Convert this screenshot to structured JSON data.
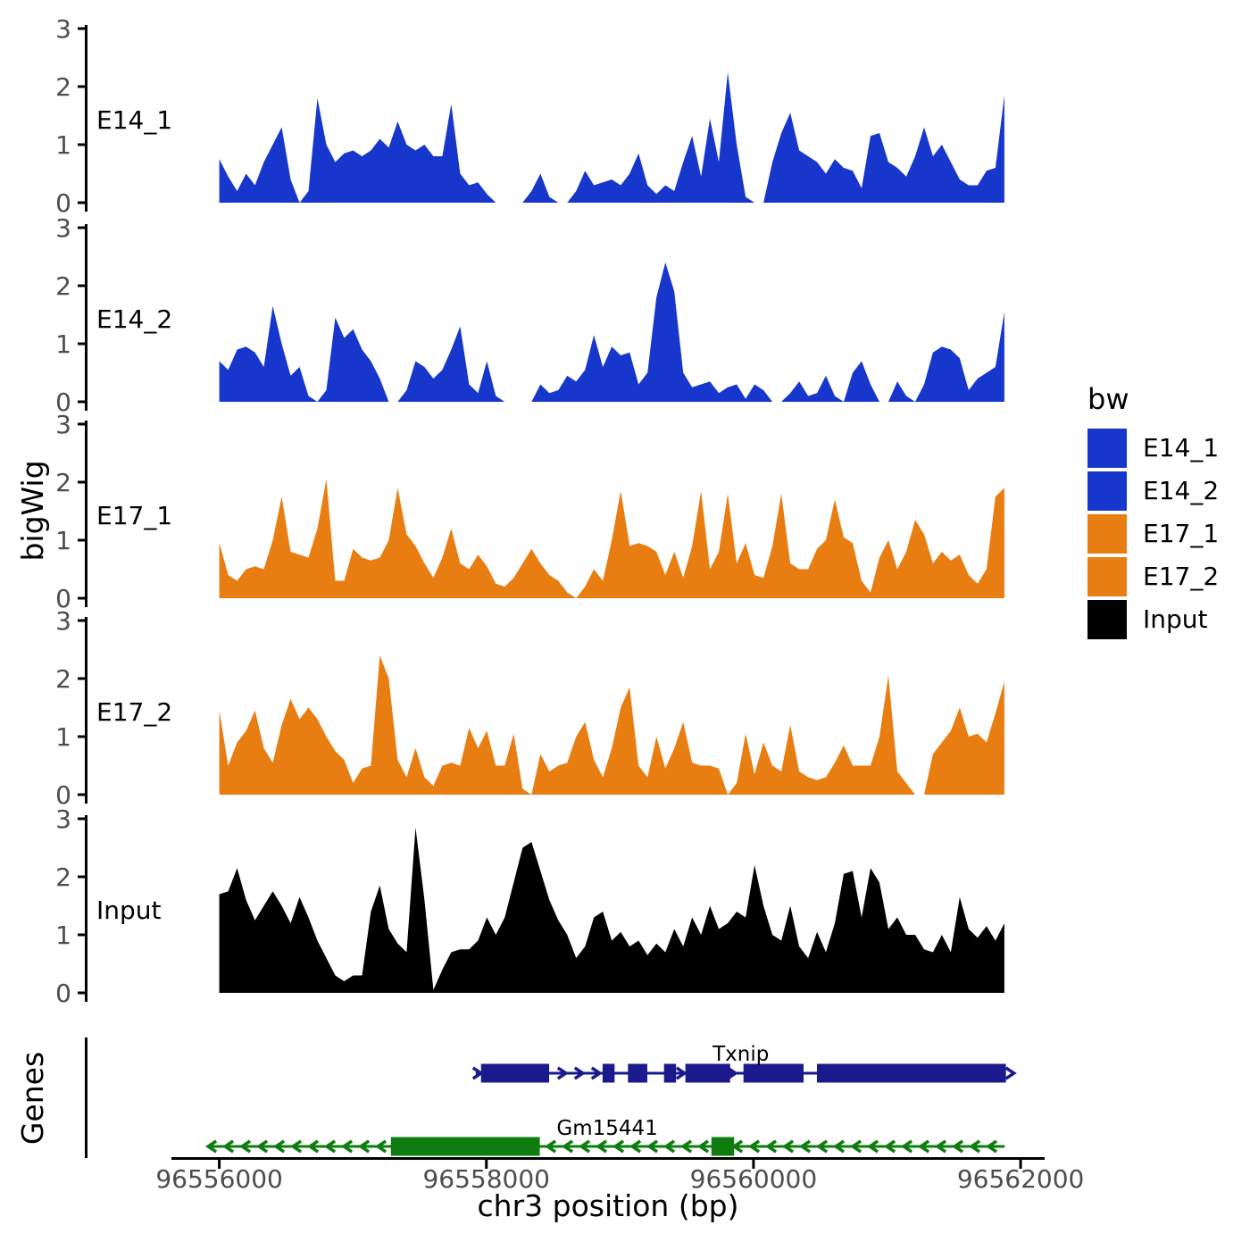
{
  "figure": {
    "x_axis_title": "chr3 position (bp)",
    "y_axis_title": "bigWig",
    "genes_axis_title": "Genes",
    "legend_title": "bw"
  },
  "colors": {
    "blue": "#1736cc",
    "orange": "#e87d12",
    "black": "#000000",
    "txnip_navy": "#1a1a8c",
    "gm_green": "#0e7c0e",
    "axis_line": "#000000",
    "tick_text": "#4d4d4d",
    "background": "#ffffff"
  },
  "chart_data": {
    "type": "area",
    "title": "",
    "xlabel": "chr3 position (bp)",
    "ylabel": "bigWig",
    "x_axis": {
      "ticks": [
        96556000,
        96558000,
        96560000,
        96562000
      ],
      "tick_labels": [
        "96556000",
        "96558000",
        "96560000",
        "96562000"
      ],
      "domain": [
        96555000,
        96562180
      ]
    },
    "y_axis": {
      "ticks": [
        0,
        1,
        2,
        3
      ],
      "ylim": [
        0,
        3
      ]
    },
    "grid": false,
    "legend_position": "right",
    "bp_start": 96556000,
    "bp_step": 66.8,
    "tracks": [
      {
        "name": "E14_1",
        "color": "#1736cc",
        "values": [
          0.75,
          0.45,
          0.2,
          0.5,
          0.3,
          0.7,
          1.0,
          1.3,
          0.4,
          0,
          0.2,
          1.8,
          1.0,
          0.7,
          0.85,
          0.9,
          0.8,
          0.9,
          1.1,
          0.95,
          1.4,
          1.0,
          0.9,
          1.0,
          0.8,
          0.8,
          1.7,
          0.5,
          0.3,
          0.35,
          0.15,
          0,
          0,
          0,
          0,
          0.2,
          0.5,
          0.1,
          0,
          0,
          0.2,
          0.55,
          0.3,
          0.35,
          0.4,
          0.3,
          0.5,
          0.85,
          0.3,
          0.15,
          0.3,
          0.2,
          0.7,
          1.15,
          0.45,
          1.45,
          0.7,
          2.25,
          1.0,
          0.1,
          0,
          0,
          0.7,
          1.2,
          1.55,
          0.9,
          0.8,
          0.7,
          0.5,
          0.75,
          0.6,
          0.55,
          0.25,
          1.15,
          1.2,
          0.7,
          0.6,
          0.45,
          0.8,
          1.3,
          0.8,
          1.0,
          0.7,
          0.4,
          0.3,
          0.3,
          0.55,
          0.6,
          1.85
        ]
      },
      {
        "name": "E14_2",
        "color": "#1736cc",
        "values": [
          0.7,
          0.55,
          0.9,
          0.95,
          0.85,
          0.6,
          1.65,
          1.0,
          0.45,
          0.6,
          0.1,
          0,
          0.2,
          1.45,
          1.1,
          1.25,
          0.9,
          0.7,
          0.4,
          0,
          0,
          0.2,
          0.7,
          0.6,
          0.4,
          0.55,
          0.9,
          1.3,
          0.3,
          0.15,
          0.7,
          0.1,
          0,
          0,
          0,
          0,
          0.3,
          0.15,
          0.2,
          0.45,
          0.35,
          0.55,
          1.15,
          0.6,
          0.95,
          0.8,
          0.85,
          0.3,
          0.5,
          1.8,
          2.4,
          1.9,
          0.5,
          0.25,
          0.3,
          0.35,
          0.15,
          0.25,
          0.3,
          0.05,
          0.3,
          0.2,
          0,
          0,
          0.15,
          0.35,
          0.1,
          0.15,
          0.45,
          0.1,
          0,
          0.5,
          0.7,
          0.3,
          0,
          0,
          0.35,
          0.1,
          0,
          0.3,
          0.85,
          0.95,
          0.9,
          0.75,
          0.2,
          0.4,
          0.5,
          0.6,
          1.55
        ]
      },
      {
        "name": "E17_1",
        "color": "#e87d12",
        "values": [
          0.95,
          0.4,
          0.3,
          0.5,
          0.55,
          0.5,
          1.0,
          1.75,
          0.8,
          0.75,
          0.7,
          1.2,
          2.05,
          0.3,
          0.3,
          0.85,
          0.7,
          0.65,
          0.7,
          1.0,
          1.9,
          1.1,
          0.9,
          0.6,
          0.35,
          0.7,
          1.2,
          0.6,
          0.5,
          0.75,
          0.55,
          0.25,
          0.2,
          0.35,
          0.6,
          0.85,
          0.6,
          0.4,
          0.3,
          0.1,
          0,
          0.2,
          0.5,
          0.3,
          1.0,
          1.85,
          0.9,
          0.95,
          0.9,
          0.8,
          0.4,
          0.8,
          0.35,
          0.9,
          1.85,
          0.5,
          0.8,
          1.8,
          0.6,
          0.95,
          0.4,
          0.35,
          0.9,
          1.8,
          0.6,
          0.5,
          0.5,
          0.85,
          1.0,
          1.7,
          1.05,
          0.95,
          0.3,
          0.1,
          0.7,
          1.0,
          0.5,
          0.8,
          1.35,
          1.1,
          0.6,
          0.8,
          0.65,
          0.75,
          0.4,
          0.25,
          0.5,
          1.75,
          1.9
        ]
      },
      {
        "name": "E17_2",
        "color": "#e87d12",
        "values": [
          1.45,
          0.5,
          0.9,
          1.1,
          1.45,
          0.8,
          0.55,
          1.2,
          1.65,
          1.3,
          1.5,
          1.3,
          1.0,
          0.75,
          0.6,
          0.2,
          0.45,
          0.5,
          2.4,
          2.0,
          0.6,
          0.3,
          0.8,
          0.3,
          0.15,
          0.5,
          0.55,
          0.5,
          1.15,
          0.8,
          1.1,
          0.5,
          0.5,
          1.05,
          0.1,
          0,
          0.7,
          0.4,
          0.5,
          0.55,
          1.0,
          1.25,
          0.6,
          0.3,
          0.8,
          1.5,
          1.85,
          0.5,
          0.3,
          1.0,
          0.45,
          0.8,
          1.25,
          0.55,
          0.5,
          0.5,
          0.45,
          0,
          0.2,
          1.05,
          0.35,
          0.9,
          0.5,
          0.4,
          1.2,
          0.4,
          0.3,
          0.25,
          0.3,
          0.55,
          0.85,
          0.5,
          0.5,
          0.5,
          1.0,
          2.05,
          0.4,
          0.2,
          0,
          0,
          0.7,
          0.9,
          1.1,
          1.5,
          1.0,
          1.05,
          0.9,
          1.4,
          1.95
        ]
      },
      {
        "name": "Input",
        "color": "#000000",
        "values": [
          1.7,
          1.75,
          2.15,
          1.6,
          1.25,
          1.5,
          1.75,
          1.5,
          1.2,
          1.65,
          1.3,
          0.9,
          0.6,
          0.3,
          0.2,
          0.3,
          0.3,
          1.4,
          1.85,
          1.1,
          0.85,
          0.7,
          2.85,
          1.6,
          0.05,
          0.4,
          0.7,
          0.75,
          0.75,
          0.9,
          1.3,
          1.0,
          1.3,
          1.9,
          2.5,
          2.6,
          2.1,
          1.6,
          1.25,
          1.0,
          0.6,
          0.8,
          1.3,
          1.4,
          0.9,
          1.05,
          0.8,
          0.9,
          0.65,
          0.85,
          0.7,
          1.1,
          0.8,
          1.3,
          1.0,
          1.5,
          1.1,
          1.2,
          1.4,
          1.3,
          2.2,
          1.5,
          1.0,
          0.9,
          1.5,
          0.8,
          0.6,
          1.05,
          0.7,
          1.2,
          2.05,
          2.1,
          1.3,
          2.15,
          1.9,
          1.1,
          1.3,
          1.0,
          1.0,
          0.75,
          0.7,
          1.0,
          0.7,
          1.65,
          1.1,
          0.95,
          1.15,
          0.9,
          1.2
        ]
      }
    ],
    "genes": [
      {
        "name": "Txnip",
        "color": "#1a1a8c",
        "strand": "+",
        "start": 96557920,
        "end": 96561890,
        "exons": [
          [
            96557960,
            96558470
          ],
          [
            96558870,
            96558960
          ],
          [
            96559060,
            96559205
          ],
          [
            96559330,
            96559420
          ],
          [
            96559490,
            96559825
          ],
          [
            96559925,
            96560375
          ],
          [
            96560475,
            96561890
          ]
        ]
      },
      {
        "name": "Gm15441",
        "color": "#0e7c0e",
        "strand": "-",
        "start": 96555930,
        "end": 96561880,
        "exons": [
          [
            96557285,
            96558400
          ],
          [
            96559685,
            96559855
          ]
        ]
      }
    ],
    "legend": {
      "title": "bw",
      "entries": [
        {
          "label": "E14_1",
          "color": "#1736cc"
        },
        {
          "label": "E14_2",
          "color": "#1736cc"
        },
        {
          "label": "E17_1",
          "color": "#e87d12"
        },
        {
          "label": "E17_2",
          "color": "#e87d12"
        },
        {
          "label": "Input",
          "color": "#000000"
        }
      ]
    }
  }
}
